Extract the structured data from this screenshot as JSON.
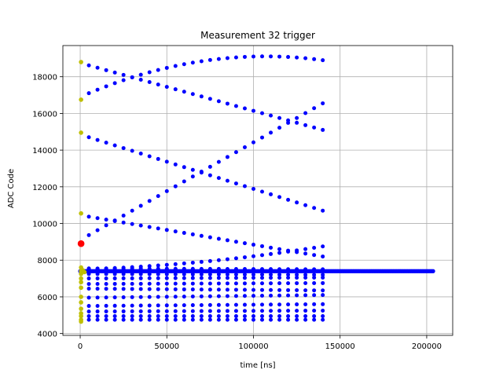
{
  "chart_data": {
    "type": "scatter",
    "title": "Measurement 32 trigger",
    "xlabel": "time [ns]",
    "ylabel": "ADC Code",
    "xlim": [
      -10000,
      215000
    ],
    "ylim": [
      3900,
      19700
    ],
    "xticks": [
      0,
      50000,
      100000,
      150000,
      200000
    ],
    "yticks": [
      4000,
      6000,
      8000,
      10000,
      12000,
      14000,
      16000,
      18000
    ],
    "grid": true,
    "colors": {
      "main": "#0000ff",
      "initial": "#bfbf00",
      "trigger": "#ff0000"
    },
    "main_points": {
      "time_step_ns": 5000,
      "time_end_ns": 140000,
      "curves": [
        {
          "type": "linear",
          "start": 18750,
          "end": 15100
        },
        {
          "type": "arc",
          "start": 16900,
          "peak": 19100,
          "peak_time": 100000,
          "end": 18900
        },
        {
          "type": "linear",
          "start": 14850,
          "end": 10700
        },
        {
          "type": "linear",
          "start": 9100,
          "end": 16550
        },
        {
          "type": "linear",
          "start": 10450,
          "end": 8200
        },
        {
          "type": "arc",
          "start": 7500,
          "peak": 8000,
          "peak_time": 80000,
          "end": 8750
        },
        {
          "type": "linear",
          "start": 7550,
          "end": 7500
        },
        {
          "type": "linear",
          "start": 7250,
          "end": 7200
        },
        {
          "type": "linear",
          "start": 7000,
          "end": 7050
        },
        {
          "type": "linear",
          "start": 6700,
          "end": 6750
        },
        {
          "type": "linear",
          "start": 6450,
          "end": 6350
        },
        {
          "type": "linear",
          "start": 5950,
          "end": 6100
        },
        {
          "type": "linear",
          "start": 5500,
          "end": 5600
        },
        {
          "type": "linear",
          "start": 5200,
          "end": 5250
        },
        {
          "type": "linear",
          "start": 4950,
          "end": 4950
        },
        {
          "type": "linear",
          "start": 4750,
          "end": 4750
        }
      ]
    },
    "baseline": {
      "y": 7400,
      "x_start": 0,
      "x_end": 204000,
      "step": 700
    },
    "initial_points": [
      {
        "x": 500,
        "y": 18800
      },
      {
        "x": 500,
        "y": 16750
      },
      {
        "x": 500,
        "y": 14950
      },
      {
        "x": 500,
        "y": 10550
      },
      {
        "x": 500,
        "y": 7600
      },
      {
        "x": 500,
        "y": 7400
      },
      {
        "x": 500,
        "y": 7250
      },
      {
        "x": 500,
        "y": 7000
      },
      {
        "x": 500,
        "y": 6800
      },
      {
        "x": 500,
        "y": 6500
      },
      {
        "x": 500,
        "y": 6000
      },
      {
        "x": 500,
        "y": 5700
      },
      {
        "x": 500,
        "y": 5350
      },
      {
        "x": 500,
        "y": 5100
      },
      {
        "x": 500,
        "y": 4950
      },
      {
        "x": 500,
        "y": 4750
      },
      {
        "x": 500,
        "y": 4650
      },
      {
        "x": 1500,
        "y": 7450
      },
      {
        "x": 2500,
        "y": 7350
      }
    ],
    "trigger_point": {
      "x": 500,
      "y": 8900
    }
  }
}
